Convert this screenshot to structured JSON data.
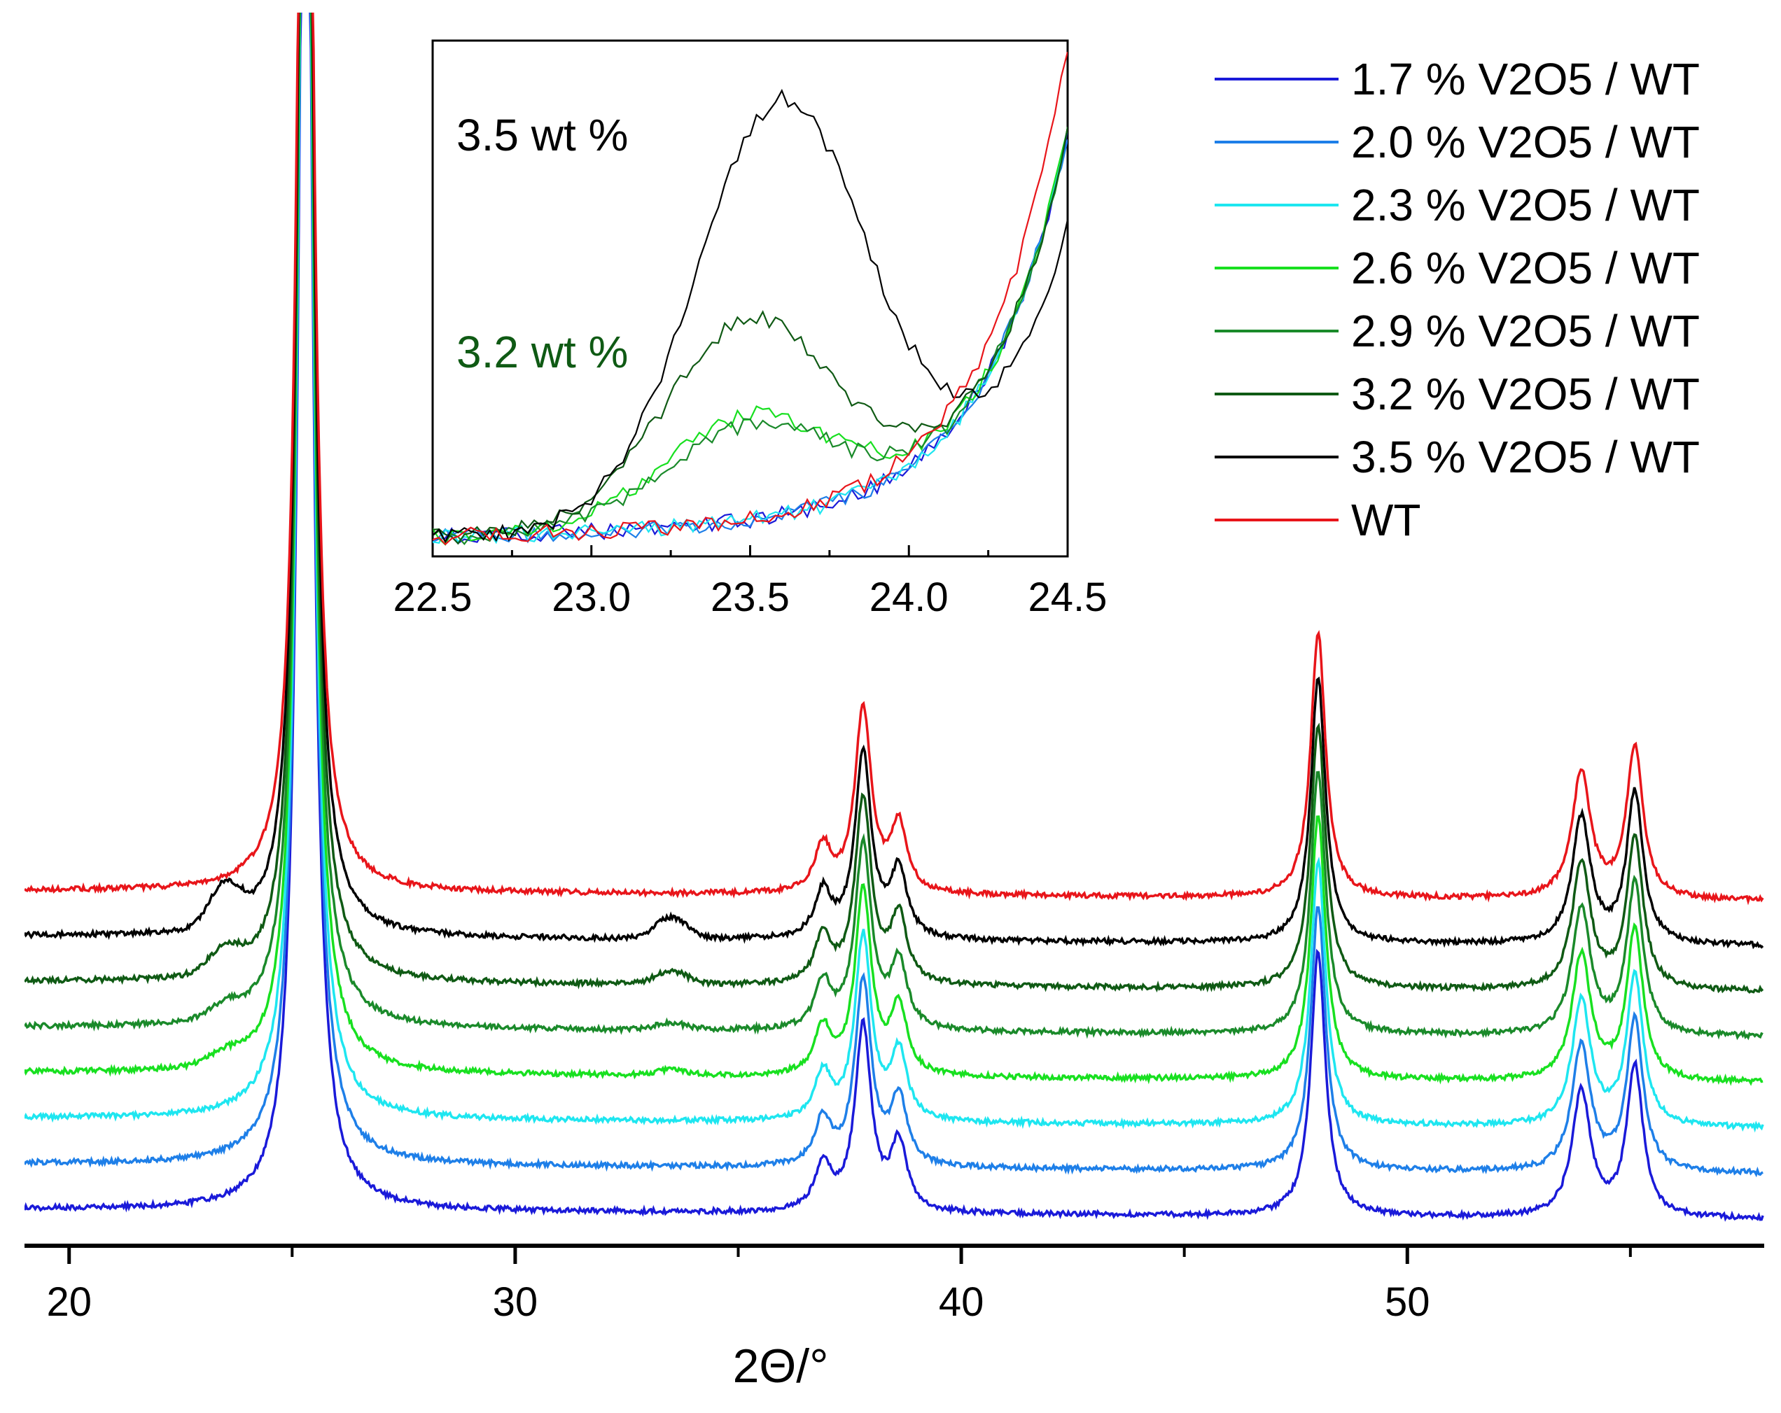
{
  "main": {
    "type": "line",
    "xlabel": "2Θ/°",
    "xlim": [
      19,
      58
    ],
    "xticks": [
      20,
      30,
      40,
      50
    ],
    "minor_xticks": [
      25,
      35,
      45,
      55
    ],
    "series": [
      {
        "name": "1.7 % V2O5 / WT",
        "color": "#1a1ad9",
        "offset": 0.0,
        "bump_24": 0.0,
        "bump_33": 0.0
      },
      {
        "name": "2.0 % V2O5 / WT",
        "color": "#1e7fe8",
        "offset": 1.0,
        "bump_24": 0.0,
        "bump_33": 0.0
      },
      {
        "name": "2.3 % V2O5 / WT",
        "color": "#1ee6f0",
        "offset": 2.0,
        "bump_24": 0.0,
        "bump_33": 0.0
      },
      {
        "name": "2.6 % V2O5 / WT",
        "color": "#18e020",
        "offset": 3.0,
        "bump_24": 0.25,
        "bump_33": 0.12
      },
      {
        "name": "2.9 % V2O5 / WT",
        "color": "#1a8a2a",
        "offset": 4.0,
        "bump_24": 0.3,
        "bump_33": 0.15
      },
      {
        "name": "3.2 % V2O5 / WT",
        "color": "#0f5a14",
        "offset": 5.0,
        "bump_24": 0.55,
        "bump_33": 0.3
      },
      {
        "name": "3.5 % V2O5 / WT",
        "color": "#000000",
        "offset": 6.0,
        "bump_24": 0.95,
        "bump_33": 0.5
      },
      {
        "name": "WT",
        "color": "#e8151a",
        "offset": 7.0,
        "bump_24": 0.0,
        "bump_33": 0.0
      }
    ],
    "peaks": [
      {
        "x": 25.3,
        "height": 40.0,
        "width": 0.18
      },
      {
        "x": 36.9,
        "height": 1.1,
        "width": 0.22
      },
      {
        "x": 37.8,
        "height": 4.4,
        "width": 0.22
      },
      {
        "x": 38.6,
        "height": 1.6,
        "width": 0.22
      },
      {
        "x": 48.0,
        "height": 6.3,
        "width": 0.2
      },
      {
        "x": 53.9,
        "height": 3.0,
        "width": 0.25
      },
      {
        "x": 55.1,
        "height": 3.6,
        "width": 0.22
      }
    ]
  },
  "legend": {
    "position": "top-right",
    "entries": [
      {
        "label": "1.7 % V2O5 / WT",
        "color": "#1a1ad9"
      },
      {
        "label": "2.0 % V2O5 / WT",
        "color": "#1e7fe8"
      },
      {
        "label": "2.3 % V2O5 / WT",
        "color": "#1ee6f0"
      },
      {
        "label": "2.6 % V2O5 / WT",
        "color": "#18e020"
      },
      {
        "label": "2.9 % V2O5 / WT",
        "color": "#1a8a2a"
      },
      {
        "label": "3.2 % V2O5 / WT",
        "color": "#0f5a14"
      },
      {
        "label": "3.5 % V2O5 / WT",
        "color": "#000000"
      },
      {
        "label": "WT",
        "color": "#e8151a"
      }
    ]
  },
  "chart_data": [
    {
      "type": "line",
      "title": "",
      "xlabel": "2Θ/°",
      "ylabel": "",
      "xlim": [
        19,
        58
      ],
      "grid": false,
      "legend": "top-right",
      "series_names": [
        "1.7 % V2O5 / WT",
        "2.0 % V2O5 / WT",
        "2.3 % V2O5 / WT",
        "2.6 % V2O5 / WT",
        "2.9 % V2O5 / WT",
        "3.2 % V2O5 / WT",
        "3.5 % V2O5 / WT",
        "WT"
      ],
      "peak_positions": [
        25.3,
        36.9,
        37.8,
        38.6,
        48.0,
        53.9,
        55.1
      ],
      "weak_v2o5_reflections": [
        23.5,
        33.5
      ]
    },
    {
      "type": "line",
      "title": "inset",
      "xlim": [
        22.5,
        24.5
      ],
      "xticks": [
        22.5,
        23.0,
        23.5,
        24.0,
        24.5
      ],
      "annotations": [
        "3.5 wt %",
        "3.2 wt %"
      ]
    }
  ],
  "inset": {
    "xlim": [
      22.5,
      24.5
    ],
    "xticks": [
      "22.5",
      "23.0",
      "23.5",
      "24.0",
      "24.5"
    ],
    "xtick_values": [
      22.5,
      23.0,
      23.5,
      24.0,
      24.5
    ],
    "annotation_35": "3.5 wt %",
    "annotation_32": "3.2 wt %",
    "annotation_35_color": "#000000",
    "annotation_32_color": "#0f5a14",
    "series": [
      {
        "name": "1.7 % V2O5 / WT",
        "color": "#1a1ad9",
        "bump": 0.0
      },
      {
        "name": "2.0 % V2O5 / WT",
        "color": "#1e7fe8",
        "bump": 0.0
      },
      {
        "name": "2.3 % V2O5 / WT",
        "color": "#1ee6f0",
        "bump": 0.0
      },
      {
        "name": "2.6 % V2O5 / WT",
        "color": "#18e020",
        "bump": 0.22
      },
      {
        "name": "2.9 % V2O5 / WT",
        "color": "#1a8a2a",
        "bump": 0.2
      },
      {
        "name": "3.2 % V2O5 / WT",
        "color": "#0f5a14",
        "bump": 0.42
      },
      {
        "name": "3.5 % V2O5 / WT",
        "color": "#000000",
        "bump": 0.88
      },
      {
        "name": "WT",
        "color": "#e8151a",
        "bump": 0.0
      }
    ]
  }
}
